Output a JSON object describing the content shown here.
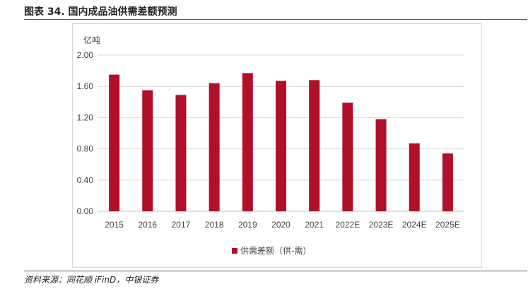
{
  "figure": {
    "title": "图表 34. 国内成品油供需差额预测",
    "source": "资料来源：同花顺 iFinD，中银证券"
  },
  "chart_data": {
    "type": "bar",
    "unit_label": "亿吨",
    "categories": [
      "2015",
      "2016",
      "2017",
      "2018",
      "2019",
      "2020",
      "2021",
      "2022E",
      "2023E",
      "2024E",
      "2025E"
    ],
    "series": [
      {
        "name": "供需差额（供-需）",
        "color": "#b0102a",
        "values": [
          1.75,
          1.55,
          1.49,
          1.64,
          1.77,
          1.67,
          1.68,
          1.39,
          1.18,
          0.87,
          0.74
        ]
      }
    ],
    "ylim": [
      0,
      2.0
    ],
    "yticks": [
      "0.00",
      "0.40",
      "0.80",
      "1.20",
      "1.60",
      "2.00"
    ],
    "grid": true,
    "legend_position": "bottom-center"
  }
}
